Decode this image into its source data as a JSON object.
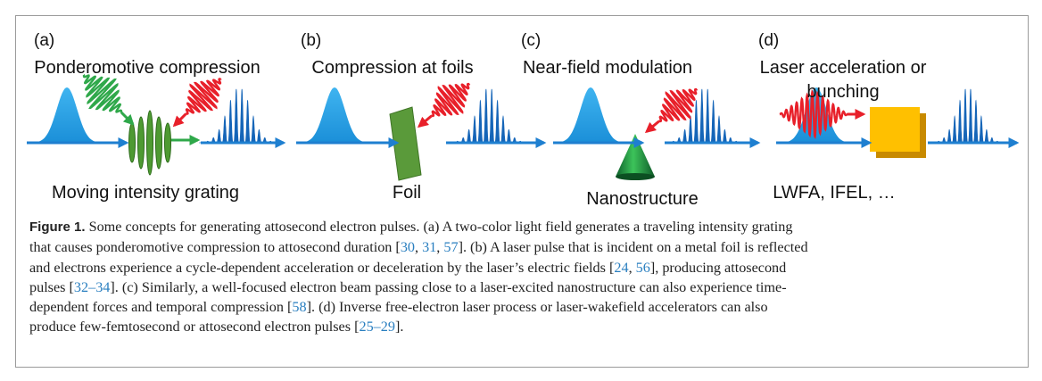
{
  "panels": [
    {
      "label": "(a)",
      "title": [
        "Ponderomotive compression"
      ],
      "caption": "Moving intensity grating"
    },
    {
      "label": "(b)",
      "title": [
        "Compression at foils"
      ],
      "caption": "Foil"
    },
    {
      "label": "(c)",
      "title": [
        "Near-field modulation"
      ],
      "caption": "Nanostructure"
    },
    {
      "label": "(d)",
      "title": [
        "Laser acceleration or",
        "bunching"
      ],
      "caption": "LWFA, IFEL, …"
    }
  ],
  "caption": {
    "label": "Figure 1.",
    "lines": [
      [
        " Some concepts for generating attosecond electron pulses. (a) A two-color light field generates a traveling intensity grating"
      ],
      [
        "that causes ponderomotive compression to attosecond duration [",
        {
          "link": "30"
        },
        ", ",
        {
          "link": "31"
        },
        ", ",
        {
          "link": "57"
        },
        "]. (b) A laser pulse that is incident on a metal foil is reflected"
      ],
      [
        "and electrons experience a cycle-dependent acceleration or deceleration by the laser’s electric fields [",
        {
          "link": "24"
        },
        ", ",
        {
          "link": "56"
        },
        "], producing attosecond"
      ],
      [
        "pulses [",
        {
          "link": "32–34"
        },
        "]. (c) Similarly, a well-focused electron beam passing close to a laser-excited nanostructure can also experience time-"
      ],
      [
        "dependent forces and temporal compression [",
        {
          "link": "58"
        },
        "]. (d) Inverse free-electron laser process or laser-wakefield accelerators can also"
      ],
      [
        "produce few-femtosecond or attosecond electron pulses [",
        {
          "link": "25–29"
        },
        "]."
      ]
    ]
  }
}
